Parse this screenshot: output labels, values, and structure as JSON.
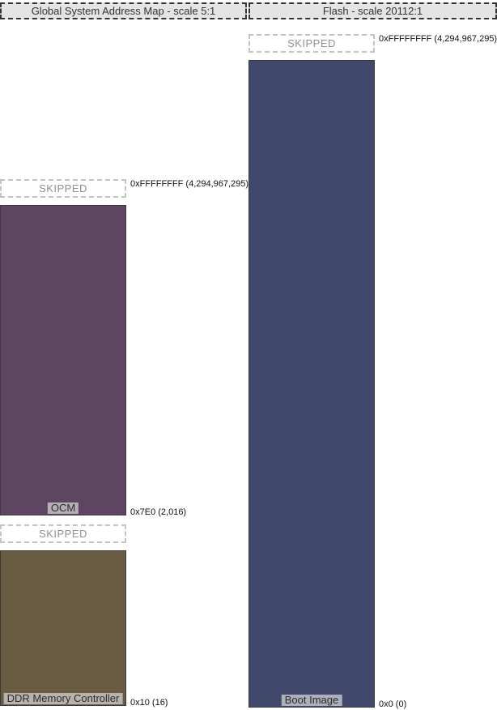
{
  "maps": [
    {
      "title": "Global System Address Map - scale 5:1",
      "skipped_top_label": "SKIPPED",
      "skipped_mid_label": "SKIPPED",
      "regions": [
        {
          "name": "OCM",
          "color": "#5e4663"
        },
        {
          "name": "DDR Memory Controller",
          "color": "#6a5c42"
        }
      ],
      "addresses": {
        "top": "0xFFFFFFFF (4,294,967,295)",
        "ocm_base": "0x7E0 (2,016)",
        "ddr_base": "0x10 (16)"
      }
    },
    {
      "title": "Flash - scale 20112:1",
      "skipped_top_label": "SKIPPED",
      "regions": [
        {
          "name": "Boot Image",
          "color": "#40486b"
        }
      ],
      "addresses": {
        "top": "0xFFFFFFFF (4,294,967,295)",
        "base": "0x0 (0)"
      }
    }
  ]
}
